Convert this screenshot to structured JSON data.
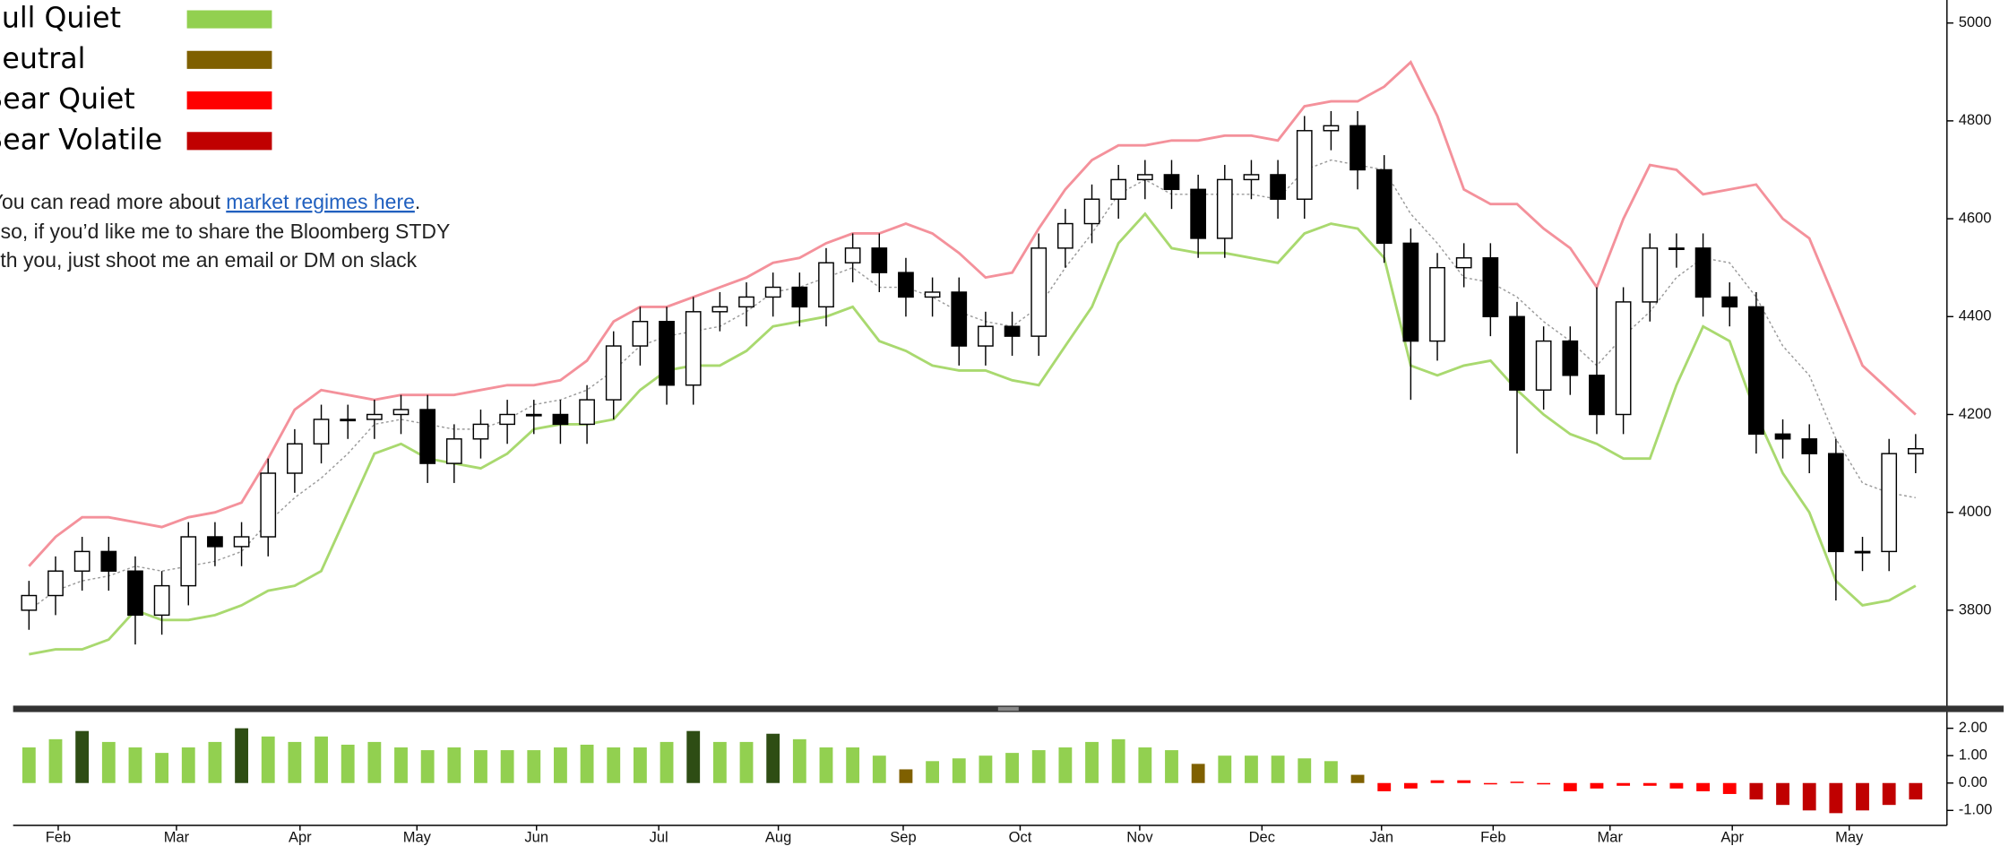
{
  "legend": {
    "items": [
      {
        "name": "Bull Quiet",
        "color": "#92d050"
      },
      {
        "name": "Neutral",
        "color": "#7f6000"
      },
      {
        "name": "Bear Quiet",
        "color": "#ff0000"
      },
      {
        "name": "Bear Volatile",
        "color": "#c00000"
      }
    ]
  },
  "note": {
    "line1": "You can read more about ",
    "link": "market regimes here",
    "line1_end": ".",
    "line2": "Also, if you’d like me to share the Bloomberg STDY",
    "line3": "with you, just shoot me an email or DM on slack"
  },
  "chart_data": [
    {
      "type": "candlestick",
      "xlim": [
        -0.5,
        71.5
      ],
      "ylim": [
        3605,
        5047
      ],
      "yticks": [
        3800,
        4000,
        4200,
        4400,
        4600,
        4800,
        5000
      ],
      "up_color": "#ffffff",
      "down_color": "#000000",
      "open": [
        3800,
        3830,
        3880,
        3920,
        3880,
        3790,
        3850,
        3950,
        3930,
        3950,
        4080,
        4140,
        4190,
        4190,
        4200,
        4210,
        4100,
        4150,
        4180,
        4200,
        4200,
        4180,
        4230,
        4340,
        4390,
        4260,
        4410,
        4420,
        4440,
        4460,
        4420,
        4510,
        4540,
        4490,
        4440,
        4450,
        4340,
        4380,
        4360,
        4540,
        4590,
        4640,
        4680,
        4690,
        4660,
        4560,
        4680,
        4690,
        4640,
        4780,
        4790,
        4700,
        4550,
        4350,
        4500,
        4520,
        4400,
        4250,
        4350,
        4280,
        4200,
        4430,
        4540,
        4540,
        4440,
        4420,
        4160,
        4150,
        4120,
        3920,
        3920,
        4120
      ],
      "high": [
        3860,
        3910,
        3950,
        3950,
        3910,
        3880,
        3980,
        3980,
        3980,
        4110,
        4170,
        4220,
        4220,
        4230,
        4240,
        4240,
        4180,
        4210,
        4230,
        4230,
        4230,
        4260,
        4370,
        4420,
        4420,
        4440,
        4450,
        4470,
        4490,
        4490,
        4540,
        4570,
        4570,
        4520,
        4480,
        4480,
        4410,
        4410,
        4570,
        4620,
        4670,
        4710,
        4720,
        4720,
        4690,
        4710,
        4720,
        4720,
        4810,
        4820,
        4820,
        4730,
        4580,
        4530,
        4550,
        4550,
        4430,
        4380,
        4380,
        4460,
        4460,
        4570,
        4570,
        4570,
        4470,
        4450,
        4190,
        4180,
        4150,
        3950,
        4150,
        4160
      ],
      "low": [
        3760,
        3790,
        3840,
        3840,
        3730,
        3750,
        3810,
        3890,
        3890,
        3910,
        4040,
        4100,
        4150,
        4150,
        4160,
        4060,
        4060,
        4110,
        4140,
        4160,
        4140,
        4140,
        4190,
        4300,
        4220,
        4220,
        4370,
        4380,
        4400,
        4380,
        4380,
        4470,
        4450,
        4400,
        4400,
        4300,
        4300,
        4320,
        4320,
        4500,
        4550,
        4600,
        4640,
        4620,
        4520,
        4520,
        4640,
        4600,
        4600,
        4740,
        4660,
        4510,
        4230,
        4310,
        4460,
        4360,
        4120,
        4210,
        4240,
        4160,
        4160,
        4390,
        4500,
        4400,
        4380,
        4120,
        4110,
        4080,
        3820,
        3880,
        3880,
        4080
      ],
      "close": [
        3830,
        3880,
        3920,
        3880,
        3790,
        3850,
        3950,
        3930,
        3950,
        4080,
        4140,
        4190,
        4190,
        4200,
        4210,
        4100,
        4150,
        4180,
        4200,
        4200,
        4180,
        4230,
        4340,
        4390,
        4260,
        4410,
        4420,
        4440,
        4460,
        4420,
        4510,
        4540,
        4490,
        4440,
        4450,
        4340,
        4380,
        4360,
        4540,
        4590,
        4640,
        4680,
        4690,
        4660,
        4560,
        4680,
        4690,
        4640,
        4780,
        4790,
        4700,
        4550,
        4350,
        4500,
        4520,
        4400,
        4250,
        4350,
        4280,
        4200,
        4430,
        4540,
        4540,
        4440,
        4420,
        4160,
        4150,
        4120,
        3920,
        3920,
        4120,
        4130
      ],
      "bands": [
        {
          "color": "#f4919b",
          "width": 2,
          "dash": "none",
          "values": [
            3890,
            3950,
            3990,
            3990,
            3980,
            3970,
            3990,
            4000,
            4020,
            4110,
            4210,
            4250,
            4240,
            4230,
            4240,
            4240,
            4240,
            4250,
            4260,
            4260,
            4270,
            4310,
            4390,
            4420,
            4420,
            4440,
            4460,
            4480,
            4510,
            4520,
            4550,
            4570,
            4570,
            4590,
            4570,
            4530,
            4480,
            4490,
            4580,
            4660,
            4720,
            4750,
            4750,
            4760,
            4760,
            4770,
            4770,
            4760,
            4830,
            4840,
            4840,
            4870,
            4920,
            4810,
            4660,
            4630,
            4630,
            4580,
            4540,
            4460,
            4600,
            4710,
            4700,
            4650,
            4660,
            4670,
            4600,
            4560,
            4430,
            4300,
            4250,
            4200
          ]
        },
        {
          "color": "#9a9a9a",
          "width": 1,
          "dash": "2 2",
          "values": [
            3800,
            3840,
            3860,
            3870,
            3890,
            3880,
            3890,
            3900,
            3920,
            3980,
            4030,
            4070,
            4120,
            4180,
            4190,
            4180,
            4170,
            4170,
            4190,
            4220,
            4230,
            4250,
            4290,
            4340,
            4360,
            4370,
            4380,
            4410,
            4450,
            4460,
            4480,
            4500,
            4460,
            4460,
            4440,
            4410,
            4390,
            4380,
            4420,
            4500,
            4570,
            4650,
            4680,
            4650,
            4650,
            4650,
            4650,
            4640,
            4700,
            4720,
            4710,
            4700,
            4610,
            4550,
            4480,
            4470,
            4440,
            4390,
            4350,
            4300,
            4360,
            4410,
            4480,
            4520,
            4510,
            4440,
            4340,
            4280,
            4150,
            4060,
            4040,
            4030
          ]
        },
        {
          "color": "#a9d96f",
          "width": 2,
          "dash": "none",
          "values": [
            3710,
            3720,
            3720,
            3740,
            3800,
            3780,
            3780,
            3790,
            3810,
            3840,
            3850,
            3880,
            4000,
            4120,
            4140,
            4110,
            4100,
            4090,
            4120,
            4170,
            4180,
            4180,
            4190,
            4250,
            4290,
            4300,
            4300,
            4330,
            4380,
            4390,
            4400,
            4420,
            4350,
            4330,
            4300,
            4290,
            4290,
            4270,
            4260,
            4340,
            4420,
            4550,
            4610,
            4540,
            4530,
            4530,
            4520,
            4510,
            4570,
            4590,
            4580,
            4520,
            4300,
            4280,
            4300,
            4310,
            4250,
            4200,
            4160,
            4140,
            4110,
            4110,
            4260,
            4380,
            4350,
            4200,
            4080,
            4000,
            3860,
            3810,
            3820,
            3850
          ]
        }
      ]
    },
    {
      "type": "bar",
      "xlim": [
        -0.5,
        71.5
      ],
      "ylim": [
        -1.5,
        2.45
      ],
      "yticks": [
        {
          "value": 2,
          "label": "2.00"
        },
        {
          "value": 1,
          "label": "1.00"
        },
        {
          "value": 0,
          "label": "0.00"
        },
        {
          "value": -1,
          "label": "-1.00"
        }
      ],
      "xticks": [
        {
          "value": 1.1,
          "label": "Feb"
        },
        {
          "value": 5.55,
          "label": "Mar"
        },
        {
          "value": 10.2,
          "label": "Apr"
        },
        {
          "value": 14.6,
          "label": "May"
        },
        {
          "value": 19.1,
          "label": "Jun"
        },
        {
          "value": 23.7,
          "label": "Jul"
        },
        {
          "value": 28.2,
          "label": "Aug"
        },
        {
          "value": 32.9,
          "label": "Sep"
        },
        {
          "value": 37.3,
          "label": "Oct"
        },
        {
          "value": 41.8,
          "label": "Nov"
        },
        {
          "value": 46.4,
          "label": "Dec"
        },
        {
          "value": 50.9,
          "label": "Jan"
        },
        {
          "value": 55.1,
          "label": "Feb"
        },
        {
          "value": 59.5,
          "label": "Mar"
        },
        {
          "value": 64.1,
          "label": "Apr"
        },
        {
          "value": 68.5,
          "label": "May"
        }
      ],
      "values": [
        1.3,
        1.6,
        1.9,
        1.5,
        1.3,
        1.1,
        1.3,
        1.5,
        2.0,
        1.7,
        1.5,
        1.7,
        1.4,
        1.5,
        1.3,
        1.2,
        1.3,
        1.2,
        1.2,
        1.2,
        1.3,
        1.4,
        1.3,
        1.3,
        1.5,
        1.9,
        1.5,
        1.5,
        1.8,
        1.6,
        1.3,
        1.3,
        1.0,
        0.5,
        0.8,
        0.9,
        1.0,
        1.1,
        1.2,
        1.3,
        1.5,
        1.6,
        1.3,
        1.2,
        0.7,
        1.0,
        1.0,
        1.0,
        0.9,
        0.8,
        0.3,
        -0.3,
        -0.2,
        0.1,
        0.1,
        -0.05,
        0.05,
        -0.05,
        -0.3,
        -0.2,
        -0.1,
        -0.1,
        -0.2,
        -0.3,
        -0.4,
        -0.6,
        -0.8,
        -1.0,
        -1.1,
        -1.0,
        -0.8,
        -0.6
      ],
      "colors": [
        "#92d050",
        "#92d050",
        "#2e4d14",
        "#92d050",
        "#92d050",
        "#92d050",
        "#92d050",
        "#92d050",
        "#2e4d14",
        "#92d050",
        "#92d050",
        "#92d050",
        "#92d050",
        "#92d050",
        "#92d050",
        "#92d050",
        "#92d050",
        "#92d050",
        "#92d050",
        "#92d050",
        "#92d050",
        "#92d050",
        "#92d050",
        "#92d050",
        "#92d050",
        "#2e4d14",
        "#92d050",
        "#92d050",
        "#2e4d14",
        "#92d050",
        "#92d050",
        "#92d050",
        "#92d050",
        "#7f6000",
        "#92d050",
        "#92d050",
        "#92d050",
        "#92d050",
        "#92d050",
        "#92d050",
        "#92d050",
        "#92d050",
        "#92d050",
        "#92d050",
        "#7f6000",
        "#92d050",
        "#92d050",
        "#92d050",
        "#92d050",
        "#92d050",
        "#7f6000",
        "#ff0000",
        "#ff0000",
        "#ff0000",
        "#ff0000",
        "#ff0000",
        "#ff0000",
        "#ff0000",
        "#ff0000",
        "#ff0000",
        "#ff0000",
        "#ff0000",
        "#ff0000",
        "#ff0000",
        "#ff0000",
        "#c00000",
        "#c00000",
        "#c00000",
        "#c00000",
        "#c00000",
        "#c00000",
        "#c00000"
      ]
    }
  ]
}
